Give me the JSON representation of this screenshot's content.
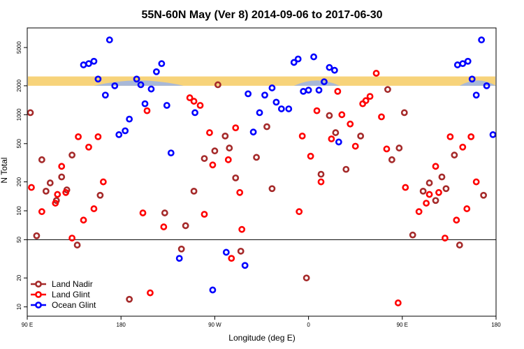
{
  "chart_data": {
    "type": "scatter",
    "title": "55N-60N May (Ver 8)   2014-09-06 to 2017-06-30",
    "xlabel": "Longitude (deg E)",
    "ylabel": "N Total",
    "x_ticks": [
      {
        "value": 0,
        "label": "90 E"
      },
      {
        "value": 90,
        "label": "180"
      },
      {
        "value": 180,
        "label": "90 W"
      },
      {
        "value": 270,
        "label": "0"
      },
      {
        "value": 360,
        "label": "90 E"
      },
      {
        "value": 450,
        "label": "180"
      }
    ],
    "y_ticks": [
      10,
      20,
      50,
      100,
      200,
      500,
      1000,
      2000,
      5000
    ],
    "xlim": [
      0,
      450
    ],
    "ylim": [
      8,
      8000
    ],
    "log_y": true,
    "reference_line": 50,
    "band": {
      "ymin": 2000,
      "ymax": 2500,
      "color": "#f7d37a",
      "overlay_color": "#a8b8d8"
    },
    "legend_position": "bottom-left",
    "series": [
      {
        "name": "Land Nadir",
        "color": "#a52a2a",
        "points": [
          [
            3,
            1050
          ],
          [
            9,
            55
          ],
          [
            14,
            340
          ],
          [
            18,
            160
          ],
          [
            22,
            195
          ],
          [
            28,
            128
          ],
          [
            33,
            225
          ],
          [
            38,
            165
          ],
          [
            43,
            380
          ],
          [
            48,
            44
          ],
          [
            70,
            145
          ],
          [
            98,
            12
          ],
          [
            132,
            95
          ],
          [
            148,
            40
          ],
          [
            152,
            70
          ],
          [
            160,
            160
          ],
          [
            170,
            350
          ],
          [
            180,
            420
          ],
          [
            183,
            2050
          ],
          [
            190,
            600
          ],
          [
            194,
            450
          ],
          [
            200,
            220
          ],
          [
            205,
            38
          ],
          [
            220,
            360
          ],
          [
            230,
            750
          ],
          [
            235,
            170
          ],
          [
            268,
            20
          ],
          [
            282,
            240
          ],
          [
            290,
            980
          ],
          [
            296,
            650
          ],
          [
            306,
            270
          ],
          [
            320,
            600
          ],
          [
            346,
            1830
          ],
          [
            350,
            340
          ],
          [
            357,
            450
          ],
          [
            362,
            1050
          ],
          [
            370,
            56
          ],
          [
            380,
            160
          ],
          [
            386,
            195
          ],
          [
            392,
            128
          ],
          [
            398,
            225
          ],
          [
            402,
            170
          ],
          [
            410,
            380
          ],
          [
            415,
            44
          ],
          [
            438,
            145
          ]
        ]
      },
      {
        "name": "Land Glint",
        "color": "#ff0000",
        "points": [
          [
            4,
            175
          ],
          [
            14,
            98
          ],
          [
            27,
            120
          ],
          [
            29,
            148
          ],
          [
            33,
            290
          ],
          [
            37,
            155
          ],
          [
            43,
            52
          ],
          [
            49,
            590
          ],
          [
            54,
            80
          ],
          [
            59,
            460
          ],
          [
            64,
            105
          ],
          [
            68,
            590
          ],
          [
            73,
            200
          ],
          [
            111,
            95
          ],
          [
            115,
            1100
          ],
          [
            118,
            14
          ],
          [
            131,
            68
          ],
          [
            156,
            1500
          ],
          [
            160,
            1380
          ],
          [
            166,
            1250
          ],
          [
            170,
            92
          ],
          [
            175,
            650
          ],
          [
            178,
            300
          ],
          [
            193,
            340
          ],
          [
            196,
            32
          ],
          [
            200,
            730
          ],
          [
            204,
            155
          ],
          [
            206,
            64
          ],
          [
            261,
            98
          ],
          [
            264,
            600
          ],
          [
            272,
            370
          ],
          [
            278,
            1100
          ],
          [
            282,
            200
          ],
          [
            292,
            560
          ],
          [
            298,
            1750
          ],
          [
            302,
            1000
          ],
          [
            310,
            800
          ],
          [
            315,
            470
          ],
          [
            322,
            1300
          ],
          [
            325,
            1400
          ],
          [
            329,
            1550
          ],
          [
            335,
            2700
          ],
          [
            340,
            950
          ],
          [
            345,
            440
          ],
          [
            356,
            11
          ],
          [
            363,
            175
          ],
          [
            376,
            98
          ],
          [
            383,
            120
          ],
          [
            386,
            148
          ],
          [
            392,
            290
          ],
          [
            395,
            155
          ],
          [
            401,
            52
          ],
          [
            406,
            590
          ],
          [
            412,
            80
          ],
          [
            418,
            460
          ],
          [
            422,
            105
          ],
          [
            426,
            590
          ],
          [
            431,
            200
          ]
        ]
      },
      {
        "name": "Ocean Glint",
        "color": "#0000ff",
        "points": [
          [
            54,
            3300
          ],
          [
            59,
            3400
          ],
          [
            64,
            3600
          ],
          [
            68,
            2350
          ],
          [
            75,
            1600
          ],
          [
            79,
            6000
          ],
          [
            84,
            2000
          ],
          [
            88,
            620
          ],
          [
            94,
            680
          ],
          [
            98,
            900
          ],
          [
            105,
            2350
          ],
          [
            109,
            2050
          ],
          [
            113,
            1300
          ],
          [
            119,
            1850
          ],
          [
            124,
            2800
          ],
          [
            129,
            3400
          ],
          [
            134,
            1250
          ],
          [
            138,
            400
          ],
          [
            146,
            32
          ],
          [
            161,
            1050
          ],
          [
            178,
            15
          ],
          [
            191,
            37
          ],
          [
            209,
            27
          ],
          [
            212,
            1650
          ],
          [
            217,
            660
          ],
          [
            223,
            1050
          ],
          [
            228,
            1600
          ],
          [
            235,
            1900
          ],
          [
            239,
            1350
          ],
          [
            244,
            1150
          ],
          [
            251,
            1150
          ],
          [
            256,
            3500
          ],
          [
            260,
            3800
          ],
          [
            265,
            1750
          ],
          [
            270,
            1800
          ],
          [
            275,
            4000
          ],
          [
            280,
            1800
          ],
          [
            285,
            2200
          ],
          [
            290,
            3100
          ],
          [
            295,
            2900
          ],
          [
            299,
            520
          ],
          [
            413,
            3300
          ],
          [
            418,
            3400
          ],
          [
            423,
            3600
          ],
          [
            427,
            2350
          ],
          [
            431,
            1600
          ],
          [
            436,
            6000
          ],
          [
            441,
            2000
          ],
          [
            447,
            620
          ]
        ]
      }
    ]
  }
}
